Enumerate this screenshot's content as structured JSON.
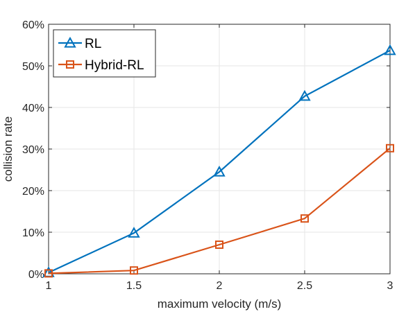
{
  "chart_data": {
    "type": "line",
    "xlabel": "maximum velocity (m/s)",
    "ylabel": "collision rate",
    "xlim": [
      1,
      3
    ],
    "ylim": [
      0,
      60
    ],
    "x_ticks": [
      "1",
      "1.5",
      "2",
      "2.5",
      "3"
    ],
    "x_tick_values": [
      1,
      1.5,
      2,
      2.5,
      3
    ],
    "y_ticks": [
      "0%",
      "10%",
      "20%",
      "30%",
      "40%",
      "50%",
      "60%"
    ],
    "y_tick_values": [
      0,
      10,
      20,
      30,
      40,
      50,
      60
    ],
    "grid": true,
    "legend_position": "top-left",
    "x": [
      1,
      1.5,
      2,
      2.5,
      3
    ],
    "series": [
      {
        "name": "RL",
        "values": [
          0.3,
          9.8,
          24.5,
          42.7,
          53.7
        ],
        "color": "#0072BD",
        "marker": "triangle"
      },
      {
        "name": "Hybrid-RL",
        "values": [
          0.1,
          0.8,
          7.0,
          13.3,
          30.2
        ],
        "color": "#D95319",
        "marker": "square"
      }
    ]
  }
}
